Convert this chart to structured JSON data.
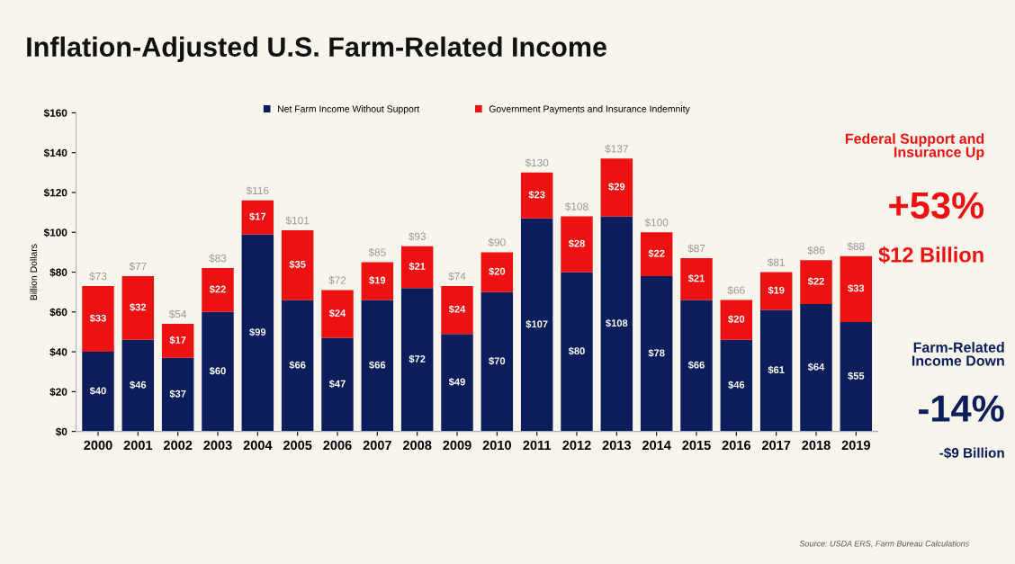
{
  "chart_data": {
    "type": "bar",
    "stacked": true,
    "title": "Inflation-Adjusted U.S. Farm-Related Income",
    "ylabel": "Billion Dollars",
    "categories": [
      "2000",
      "2001",
      "2002",
      "2003",
      "2004",
      "2005",
      "2006",
      "2007",
      "2008",
      "2009",
      "2010",
      "2011",
      "2012",
      "2013",
      "2014",
      "2015",
      "2016",
      "2017",
      "2018",
      "2019"
    ],
    "series": [
      {
        "name": "Net Farm Income Without Support",
        "color": "#0b1e5b",
        "values": [
          40,
          46,
          37,
          60,
          99,
          66,
          47,
          66,
          72,
          49,
          70,
          107,
          80,
          108,
          78,
          66,
          46,
          61,
          64,
          55
        ],
        "value_labels": [
          "$40",
          "$46",
          "$37",
          "$60",
          "$99",
          "$66",
          "$47",
          "$66",
          "$72",
          "$49",
          "$70",
          "$107",
          "$80",
          "$108",
          "$78",
          "$66",
          "$46",
          "$61",
          "$64",
          "$55"
        ]
      },
      {
        "name": "Government Payments and Insurance Indemnity",
        "color": "#ee1111",
        "values": [
          33,
          32,
          17,
          22,
          17,
          35,
          24,
          19,
          21,
          24,
          20,
          23,
          28,
          29,
          22,
          21,
          20,
          19,
          22,
          33
        ],
        "value_labels": [
          "$33",
          "$32",
          "$17",
          "$22",
          "$17",
          "$35",
          "$24",
          "$19",
          "$21",
          "$24",
          "$20",
          "$23",
          "$28",
          "$29",
          "$22",
          "$21",
          "$20",
          "$19",
          "$22",
          "$33"
        ]
      }
    ],
    "totals": [
      "$73",
      "$77",
      "$54",
      "$83",
      "$116",
      "$101",
      "$72",
      "$85",
      "$93",
      "$74",
      "$90",
      "$130",
      "$108",
      "$137",
      "$100",
      "$87",
      "$66",
      "$81",
      "$86",
      "$88"
    ],
    "ylim": [
      0,
      160
    ],
    "yticks": [
      {
        "value": 0,
        "label": "$0"
      },
      {
        "value": 20,
        "label": "$20"
      },
      {
        "value": 40,
        "label": "$40"
      },
      {
        "value": 60,
        "label": "$60"
      },
      {
        "value": 80,
        "label": "$80"
      },
      {
        "value": 100,
        "label": "$100"
      },
      {
        "value": 120,
        "label": "$120"
      },
      {
        "value": 140,
        "label": "$140"
      },
      {
        "value": 160,
        "label": "$160"
      }
    ],
    "grid": false,
    "legend": "top",
    "annotations": [
      "Federal Support and\nInsurance Up",
      "+53%",
      "$12 Billion",
      "Farm-Related\nIncome Down",
      "-14%",
      "-$9 Billion",
      "Source: USDA ERS, Farm Bureau Calculations"
    ]
  }
}
